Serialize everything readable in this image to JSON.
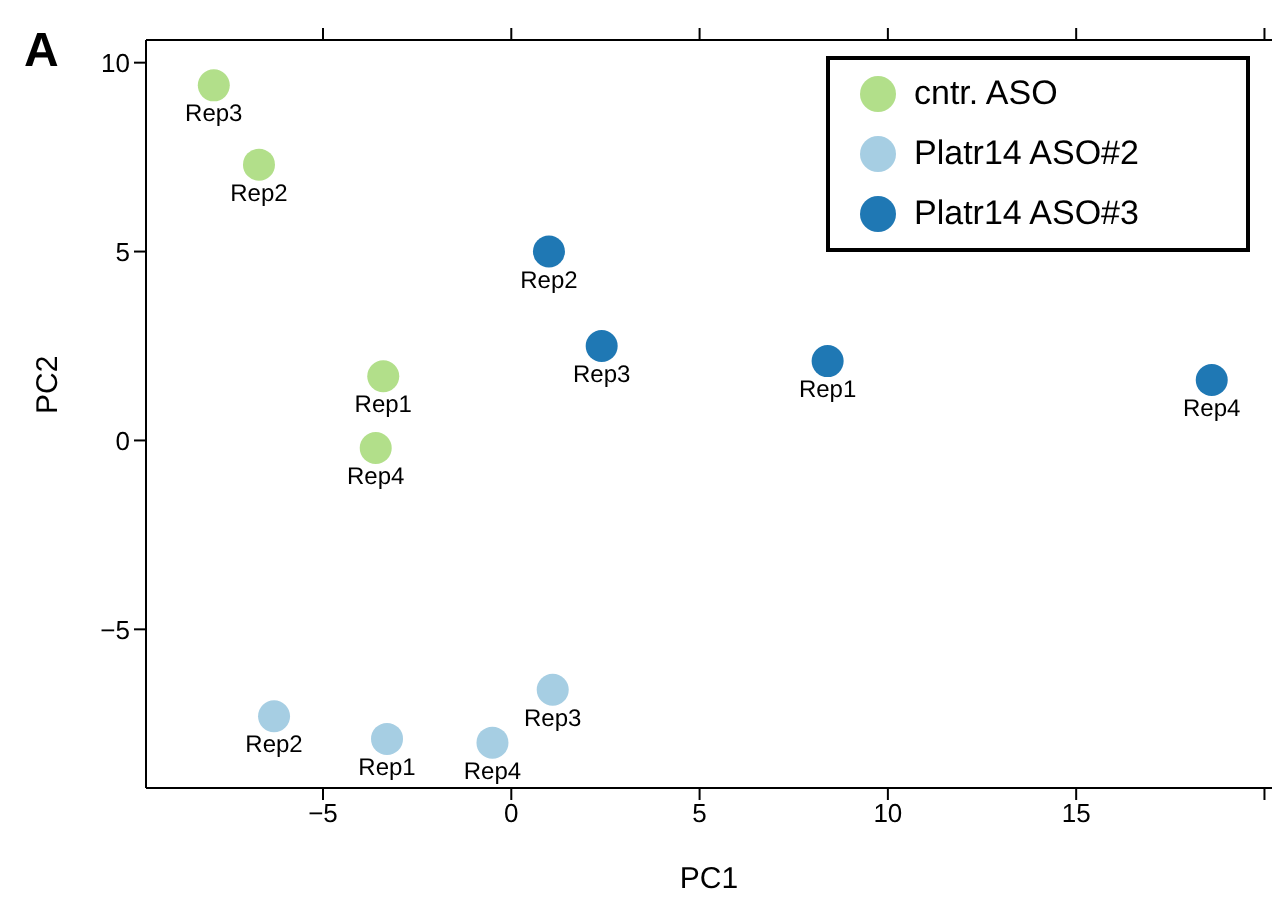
{
  "chart_data": {
    "type": "scatter",
    "title": "A",
    "xlabel": "PC1",
    "ylabel": "PC2",
    "xlim": [
      -9.7,
      20.2
    ],
    "ylim": [
      -9.2,
      10.6
    ],
    "xticks": [
      -5,
      0,
      5,
      10,
      15,
      {
        "value": 20,
        "label": null
      }
    ],
    "yticks": [
      -5,
      0,
      5,
      10
    ],
    "marker": "circle",
    "legend": "top right",
    "series": [
      {
        "name": "cntr. ASO",
        "color": "#b2df8a",
        "x": [
          -7.9,
          -6.7,
          -3.4,
          -3.6
        ],
        "values": [
          9.4,
          7.3,
          1.7,
          -0.2
        ],
        "value_labels": [
          "Rep3",
          "Rep2",
          "Rep1",
          "Rep4"
        ]
      },
      {
        "name": "Platr14 ASO#2",
        "color": "#a6cee3",
        "x": [
          -6.3,
          -3.3,
          -0.5,
          1.1
        ],
        "values": [
          -7.3,
          -7.9,
          -8.0,
          -6.6
        ],
        "value_labels": [
          "Rep2",
          "Rep1",
          "Rep4",
          "Rep3"
        ]
      },
      {
        "name": "Platr14 ASO#3",
        "color": "#1f78b4",
        "x": [
          1.0,
          2.4,
          8.4,
          18.6
        ],
        "values": [
          5.0,
          2.5,
          2.1,
          1.6
        ],
        "value_labels": [
          "Rep2",
          "Rep3",
          "Rep1",
          "Rep4"
        ]
      }
    ]
  }
}
